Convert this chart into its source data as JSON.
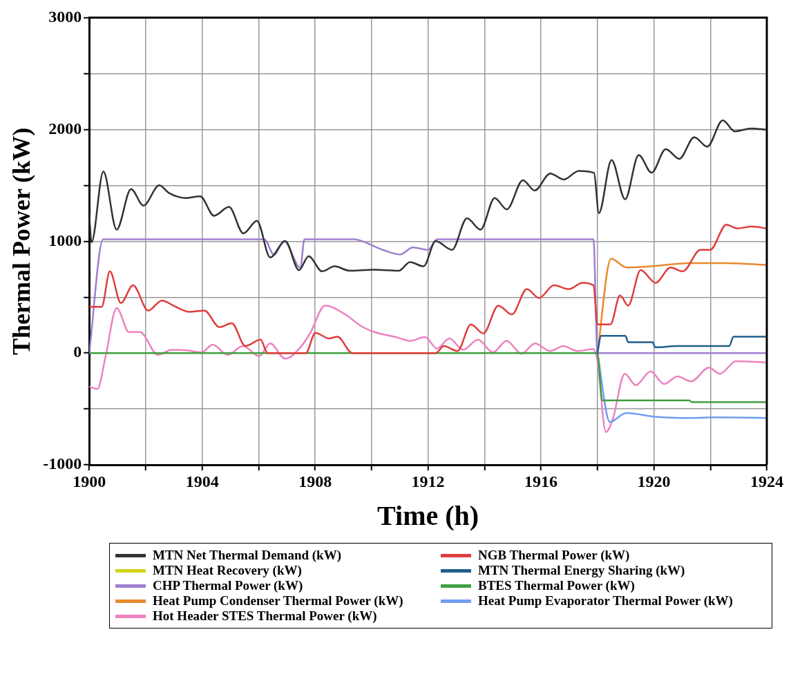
{
  "chart_data": {
    "type": "line",
    "xlabel": "Time (h)",
    "ylabel": "Thermal Power (kW)",
    "xlim": [
      1900,
      1924
    ],
    "xticks": [
      1900,
      {
        "value": 1902,
        "label": null
      },
      1904,
      {
        "value": 1906,
        "label": null
      },
      1908,
      {
        "value": 1910,
        "label": null
      },
      1912,
      {
        "value": 1914,
        "label": null
      },
      1916,
      {
        "value": 1918,
        "label": null
      },
      1920,
      {
        "value": 1922,
        "label": null
      },
      1924
    ],
    "ylim": [
      -1000,
      3000
    ],
    "yticks": [
      -1000,
      {
        "value": -500,
        "label": null
      },
      0,
      {
        "value": 500,
        "label": null
      },
      1000,
      {
        "value": 1500,
        "label": null
      },
      2000,
      {
        "value": 2500,
        "label": null
      },
      3000
    ],
    "grid": true,
    "legend": "bottom",
    "marker": "none",
    "line_style": "solid",
    "series": [
      {
        "name": "MTN Net Thermal Demand (kW)",
        "color": "#333333",
        "x": [
          1900,
          1900.08,
          1900.5,
          1900.97,
          1901.48,
          1901.92,
          1902.48,
          1902.82,
          1903.4,
          1903.93,
          1904.42,
          1904.95,
          1905.46,
          1905.94,
          1906.41,
          1906.94,
          1907.43,
          1907.77,
          1908.25,
          1908.69,
          1909.22,
          1910.1,
          1910.97,
          1911.36,
          1911.84,
          1912.27,
          1912.85,
          1913.38,
          1913.86,
          1914.36,
          1914.79,
          1915.36,
          1915.78,
          1916.33,
          1916.81,
          1917.34,
          1917.88,
          1918.05,
          1918.5,
          1918.98,
          1919.46,
          1919.92,
          1920.42,
          1920.9,
          1921.43,
          1921.89,
          1922.44,
          1922.87,
          1923.45,
          1924
        ],
        "values": [
          1240,
          990,
          1624,
          1104,
          1466,
          1319,
          1500,
          1432,
          1387,
          1402,
          1228,
          1307,
          1070,
          1183,
          855,
          1002,
          742,
          866,
          731,
          776,
          737,
          746,
          737,
          814,
          776,
          1002,
          923,
          1206,
          1104,
          1387,
          1285,
          1545,
          1454,
          1606,
          1552,
          1629,
          1611,
          1251,
          1726,
          1375,
          1771,
          1613,
          1823,
          1737,
          1930,
          1846,
          2081,
          1982,
          2009,
          1997
        ]
      },
      {
        "name": "NGB Thermal Power (kW)",
        "color": "#e03c3c",
        "x": [
          1900,
          1900.44,
          1900.73,
          1901.12,
          1901.55,
          1902.09,
          1902.57,
          1903.06,
          1903.54,
          1904.08,
          1904.61,
          1905.05,
          1905.53,
          1906.07,
          1906.26,
          1906.32,
          1907.67,
          1908.01,
          1908.5,
          1908.79,
          1909.32,
          1912.27,
          1912.56,
          1913.04,
          1913.52,
          1913.96,
          1914.49,
          1914.97,
          1915.5,
          1915.93,
          1916.46,
          1916.99,
          1917.47,
          1917.86,
          1918.0,
          1918.46,
          1918.8,
          1919.09,
          1919.53,
          1920.06,
          1920.59,
          1921.02,
          1921.65,
          1921.99,
          1922.57,
          1922.95,
          1923.48,
          1924
        ],
        "values": [
          414,
          414,
          731,
          448,
          606,
          380,
          470,
          414,
          369,
          380,
          233,
          267,
          63,
          120,
          18,
          0,
          0,
          181,
          131,
          147,
          0,
          0,
          63,
          18,
          256,
          176,
          425,
          346,
          572,
          493,
          606,
          572,
          629,
          606,
          256,
          256,
          516,
          425,
          742,
          629,
          765,
          731,
          923,
          923,
          1149,
          1115,
          1131,
          1115
        ]
      },
      {
        "name": "MTN Heat Recovery (kW)",
        "color": "#d4d41a"
      },
      {
        "name": "MTN Thermal Energy Sharing (kW)",
        "color": "#1f5f8b",
        "x": [
          1918.0,
          1918.13,
          1918.99,
          1919.09,
          1919.95,
          1920.05,
          1920.84,
          1922.67,
          1922.82,
          1924
        ],
        "values": [
          0,
          154,
          154,
          97,
          97,
          52,
          63,
          63,
          147,
          147
        ]
      },
      {
        "name": "CHP Thermal Power (kW)",
        "color": "#a07fd0",
        "x": [
          1900,
          1900.49,
          1906.2,
          1906.55,
          1906.9,
          1907.48,
          1907.62,
          1909.37,
          1910.39,
          1911.02,
          1911.46,
          1912.0,
          1912.32,
          1917.86,
          1918.0,
          1924
        ],
        "values": [
          0,
          1018,
          1018,
          878,
          1002,
          765,
          1018,
          1018,
          923,
          882,
          945,
          923,
          1018,
          1018,
          0,
          0
        ]
      },
      {
        "name": "BTES Thermal Power (kW)",
        "color": "#3fa03f",
        "x": [
          1900,
          1918.0,
          1918.17,
          1921.25,
          1921.35,
          1924
        ],
        "values": [
          0,
          0,
          -423,
          -423,
          -439,
          -439
        ]
      },
      {
        "name": "Heat Pump Condenser Thermal Power (kW)",
        "color": "#e88a2e",
        "x": [
          1918.0,
          1918.48,
          1919.04,
          1919.9,
          1921.25,
          1922.6,
          1924
        ],
        "values": [
          0,
          844,
          765,
          776,
          805,
          805,
          787
        ]
      },
      {
        "name": "Heat Pump Evaporator Thermal Power (kW)",
        "color": "#6e9ef0",
        "x": [
          1918.0,
          1918.44,
          1919.02,
          1920.08,
          1921.25,
          1922.21,
          1924
        ],
        "values": [
          0,
          -615,
          -536,
          -570,
          -581,
          -575,
          -580
        ]
      },
      {
        "name": "Hot Header STES Thermal Power (kW)",
        "color": "#ec82c0",
        "x": [
          1900,
          1900.29,
          1900.58,
          1900.97,
          1901.41,
          1901.8,
          1902.43,
          1902.91,
          1903.5,
          1903.98,
          1904.37,
          1904.9,
          1905.44,
          1906.02,
          1906.41,
          1906.94,
          1907.48,
          1907.82,
          1908.35,
          1909.13,
          1909.61,
          1910.1,
          1910.87,
          1911.36,
          1911.89,
          1912.32,
          1912.76,
          1913.24,
          1913.77,
          1914.3,
          1914.78,
          1915.31,
          1915.79,
          1916.32,
          1916.8,
          1917.28,
          1917.86,
          1918.0,
          1918.3,
          1918.54,
          1918.97,
          1919.36,
          1919.88,
          1920.36,
          1920.84,
          1921.32,
          1921.95,
          1922.34,
          1922.91,
          1924
        ],
        "values": [
          -299,
          -321,
          -27,
          403,
          188,
          188,
          -16,
          29,
          23,
          7,
          75,
          -16,
          63,
          -27,
          86,
          -50,
          52,
          176,
          425,
          335,
          244,
          188,
          143,
          109,
          143,
          41,
          131,
          29,
          120,
          7,
          109,
          -5,
          86,
          18,
          63,
          18,
          36,
          -72,
          -706,
          -593,
          -185,
          -287,
          -163,
          -276,
          -208,
          -253,
          -129,
          -185,
          -72,
          -84
        ]
      }
    ]
  }
}
